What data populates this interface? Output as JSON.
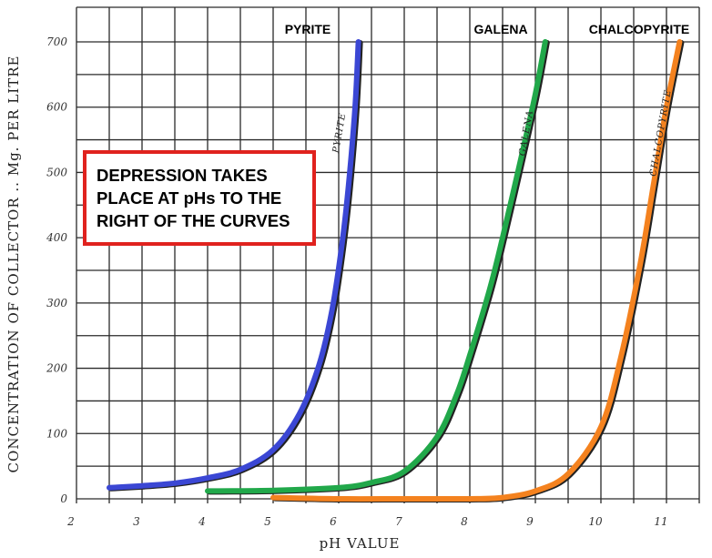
{
  "chart_data": {
    "type": "line",
    "title": "",
    "xlabel": "pH VALUE",
    "ylabel": "CONCENTRATION OF COLLECTOR .. Mg. PER LITRE",
    "xlim": [
      2,
      11.5
    ],
    "ylim": [
      0,
      700
    ],
    "x_ticks": [
      2,
      3,
      4,
      5,
      6,
      7,
      8,
      9,
      10,
      11
    ],
    "y_ticks": [
      0,
      100,
      200,
      300,
      400,
      500,
      600,
      700
    ],
    "grid": true,
    "series": [
      {
        "name": "PYRITE",
        "curve_label": "PYRITE",
        "color": "#3b47d4",
        "points": [
          [
            2.5,
            17
          ],
          [
            3.0,
            20
          ],
          [
            3.5,
            24
          ],
          [
            4.0,
            32
          ],
          [
            4.5,
            45
          ],
          [
            5.0,
            75
          ],
          [
            5.4,
            130
          ],
          [
            5.7,
            205
          ],
          [
            5.9,
            290
          ],
          [
            6.05,
            390
          ],
          [
            6.15,
            480
          ],
          [
            6.25,
            600
          ],
          [
            6.3,
            700
          ]
        ]
      },
      {
        "name": "GALENA",
        "curve_label": "GALENA",
        "color": "#21a84a",
        "points": [
          [
            4.0,
            12
          ],
          [
            5.0,
            13
          ],
          [
            6.0,
            17
          ],
          [
            6.5,
            25
          ],
          [
            7.0,
            42
          ],
          [
            7.5,
            95
          ],
          [
            7.8,
            160
          ],
          [
            8.0,
            220
          ],
          [
            8.3,
            320
          ],
          [
            8.5,
            400
          ],
          [
            8.8,
            530
          ],
          [
            9.0,
            620
          ],
          [
            9.15,
            700
          ]
        ]
      },
      {
        "name": "CHALCOPYRITE",
        "curve_label": "CHALCOPYRITE",
        "color": "#f4821f",
        "points": [
          [
            5.0,
            2
          ],
          [
            6.0,
            0
          ],
          [
            7.0,
            0
          ],
          [
            8.0,
            0
          ],
          [
            8.5,
            2
          ],
          [
            9.0,
            12
          ],
          [
            9.5,
            38
          ],
          [
            10.0,
            110
          ],
          [
            10.3,
            215
          ],
          [
            10.6,
            360
          ],
          [
            10.8,
            480
          ],
          [
            11.0,
            600
          ],
          [
            11.2,
            700
          ]
        ]
      }
    ],
    "annotation": {
      "lines": [
        "DEPRESSION TAKES",
        "PLACE AT pHs TO THE",
        "RIGHT OF THE CURVES"
      ],
      "border_color": "#e0221e"
    }
  }
}
